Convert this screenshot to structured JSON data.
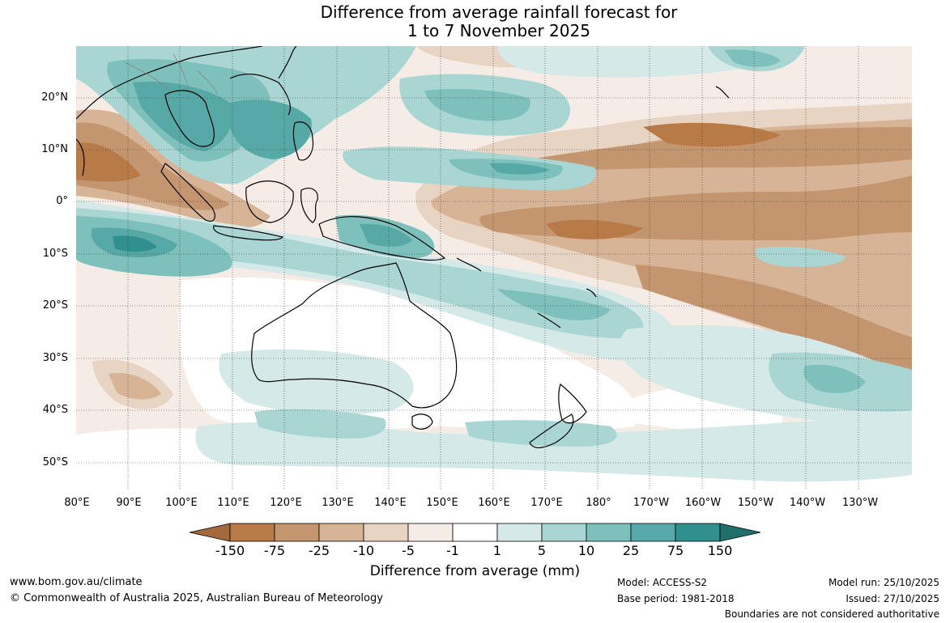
{
  "title": {
    "line1": "Difference from average rainfall forecast for",
    "line2": "1 to 7 November 2025"
  },
  "map": {
    "lat_labels": [
      "20°N",
      "10°N",
      "0°",
      "10°S",
      "20°S",
      "30°S",
      "40°S",
      "50°S"
    ],
    "lon_labels": [
      "80°E",
      "90°E",
      "100°E",
      "110°E",
      "120°E",
      "130°E",
      "140°E",
      "150°E",
      "160°E",
      "170°E",
      "180°",
      "170°W",
      "160°W",
      "150°W",
      "140°W",
      "130°W"
    ],
    "grid": "dotted"
  },
  "colorbar": {
    "ticks": [
      "-150",
      "-75",
      "-25",
      "-10",
      "-5",
      "-1",
      "1",
      "5",
      "10",
      "25",
      "75",
      "150"
    ],
    "colors": [
      "#a3693a",
      "#b87b47",
      "#c49670",
      "#d6b495",
      "#e7d4c2",
      "#f5ece6",
      "#ffffff",
      "#d4e9e8",
      "#a9d6d3",
      "#7ec0bb",
      "#56a9a6",
      "#2f908e",
      "#216f6d"
    ],
    "label": "Difference from average (mm)"
  },
  "footer": {
    "website": "www.bom.gov.au/climate",
    "copyright": "© Commonwealth of Australia 2025, Australian Bureau of Meteorology",
    "model": "Model: ACCESS-S2",
    "base_period": "Base period: 1981-2018",
    "model_run": "Model run: 25/10/2025",
    "issued": "Issued: 27/10/2025",
    "disclaimer": "Boundaries are not considered authoritative"
  }
}
